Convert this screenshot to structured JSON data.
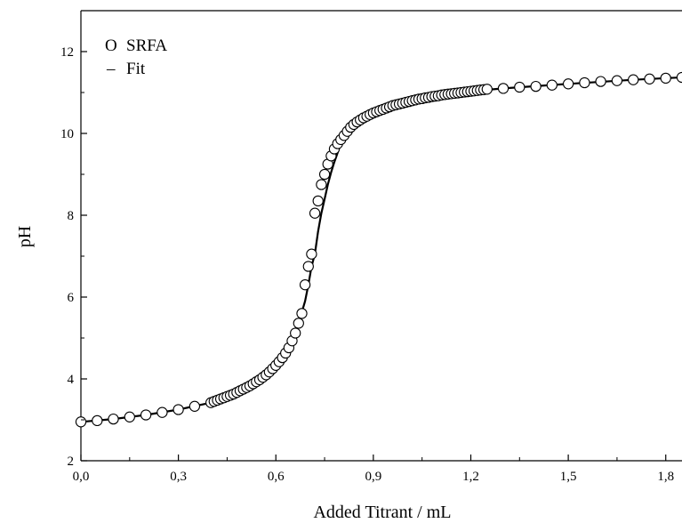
{
  "chart_data": {
    "type": "scatter",
    "xlabel": "Added Titrant / mL",
    "ylabel": "pH",
    "xlim": [
      0.0,
      1.85
    ],
    "ylim": [
      2,
      13
    ],
    "x_ticks": [
      0.0,
      0.3,
      0.6,
      0.9,
      1.2,
      1.5,
      1.8
    ],
    "x_tick_labels": [
      "0,0",
      "0,3",
      "0,6",
      "0,9",
      "1,2",
      "1,5",
      "1,8"
    ],
    "y_ticks": [
      2,
      4,
      6,
      8,
      10,
      12
    ],
    "y_tick_labels": [
      "2",
      "4",
      "6",
      "8",
      "10",
      "12"
    ],
    "grid": false,
    "legend_position": "top-left",
    "legend": [
      {
        "symbol": "O",
        "label": "SRFA"
      },
      {
        "symbol": "–",
        "label": "Fit"
      }
    ],
    "series": [
      {
        "name": "SRFA",
        "marker": "open-circle",
        "x": [
          0.0,
          0.05,
          0.1,
          0.15,
          0.2,
          0.25,
          0.3,
          0.35,
          0.4,
          0.41,
          0.42,
          0.43,
          0.44,
          0.45,
          0.46,
          0.47,
          0.48,
          0.49,
          0.5,
          0.51,
          0.52,
          0.53,
          0.54,
          0.55,
          0.56,
          0.57,
          0.58,
          0.59,
          0.6,
          0.61,
          0.62,
          0.63,
          0.64,
          0.65,
          0.66,
          0.67,
          0.68,
          0.69,
          0.7,
          0.71,
          0.72,
          0.73,
          0.74,
          0.75,
          0.76,
          0.77,
          0.78,
          0.79,
          0.8,
          0.81,
          0.82,
          0.83,
          0.84,
          0.85,
          0.86,
          0.87,
          0.88,
          0.89,
          0.9,
          0.91,
          0.92,
          0.93,
          0.94,
          0.95,
          0.96,
          0.97,
          0.98,
          0.99,
          1.0,
          1.01,
          1.02,
          1.03,
          1.04,
          1.05,
          1.06,
          1.07,
          1.08,
          1.09,
          1.1,
          1.11,
          1.12,
          1.13,
          1.14,
          1.15,
          1.16,
          1.17,
          1.18,
          1.19,
          1.2,
          1.21,
          1.22,
          1.23,
          1.24,
          1.25,
          1.3,
          1.35,
          1.4,
          1.45,
          1.5,
          1.55,
          1.6,
          1.65,
          1.7,
          1.75,
          1.8,
          1.85
        ],
        "y": [
          2.95,
          2.98,
          3.02,
          3.07,
          3.12,
          3.18,
          3.25,
          3.33,
          3.42,
          3.45,
          3.48,
          3.51,
          3.54,
          3.57,
          3.6,
          3.63,
          3.67,
          3.71,
          3.75,
          3.79,
          3.83,
          3.88,
          3.93,
          3.98,
          4.04,
          4.1,
          4.17,
          4.25,
          4.33,
          4.42,
          4.52,
          4.63,
          4.76,
          4.93,
          5.12,
          5.36,
          5.6,
          6.3,
          6.75,
          7.05,
          8.05,
          8.35,
          8.75,
          9.0,
          9.25,
          9.45,
          9.62,
          9.75,
          9.85,
          9.95,
          10.05,
          10.15,
          10.22,
          10.28,
          10.33,
          10.38,
          10.42,
          10.46,
          10.5,
          10.53,
          10.56,
          10.59,
          10.62,
          10.65,
          10.68,
          10.7,
          10.72,
          10.74,
          10.76,
          10.78,
          10.8,
          10.82,
          10.84,
          10.85,
          10.87,
          10.88,
          10.9,
          10.91,
          10.92,
          10.94,
          10.95,
          10.96,
          10.97,
          10.98,
          10.99,
          11.0,
          11.01,
          11.02,
          11.03,
          11.04,
          11.05,
          11.06,
          11.07,
          11.08,
          11.1,
          11.13,
          11.15,
          11.18,
          11.21,
          11.24,
          11.27,
          11.29,
          11.31,
          11.33,
          11.35,
          11.37
        ]
      },
      {
        "name": "Fit",
        "type": "line",
        "x": [
          0.0,
          0.1,
          0.2,
          0.3,
          0.4,
          0.45,
          0.5,
          0.55,
          0.6,
          0.63,
          0.65,
          0.67,
          0.69,
          0.7,
          0.71,
          0.72,
          0.73,
          0.74,
          0.75,
          0.76,
          0.77,
          0.78,
          0.8,
          0.82,
          0.85,
          0.9,
          0.95,
          1.0,
          1.1,
          1.2,
          1.3,
          1.5,
          1.7,
          1.85
        ],
        "y": [
          2.95,
          3.02,
          3.12,
          3.25,
          3.42,
          3.57,
          3.75,
          3.98,
          4.33,
          4.63,
          4.93,
          5.36,
          5.9,
          6.3,
          6.75,
          7.05,
          7.6,
          8.05,
          8.4,
          8.75,
          9.05,
          9.3,
          9.75,
          10.0,
          10.28,
          10.5,
          10.65,
          10.76,
          10.92,
          11.03,
          11.1,
          11.21,
          11.31,
          11.37
        ]
      }
    ]
  }
}
